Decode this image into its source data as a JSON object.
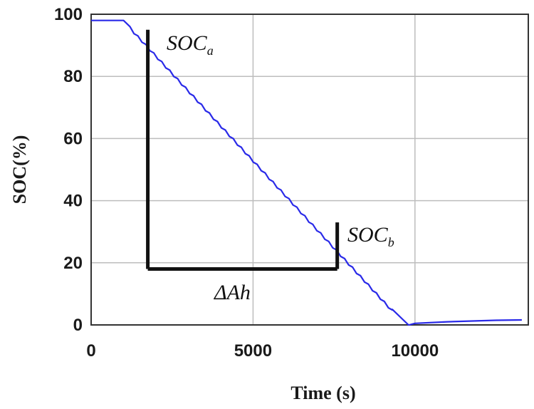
{
  "chart_data": {
    "type": "line",
    "title": "",
    "xlabel": "Time (s)",
    "ylabel": "SOC(%)",
    "xlim": [
      0,
      13500
    ],
    "ylim": [
      0,
      100
    ],
    "xticks": [
      0,
      5000,
      10000
    ],
    "yticks": [
      0,
      20,
      40,
      60,
      80,
      100
    ],
    "x_tick_labels": [
      "0",
      "5000",
      "10000"
    ],
    "y_tick_labels": [
      "0",
      "20",
      "40",
      "60",
      "80",
      "100"
    ],
    "grid": true,
    "series": [
      {
        "color": "#2a2ae8",
        "x": [
          0,
          1000,
          1200,
          9300,
          9800,
          9820,
          10000,
          11000,
          12500,
          13300
        ],
        "y": [
          98,
          98,
          96,
          5,
          0,
          0,
          0.5,
          1,
          1.5,
          1.6
        ]
      }
    ],
    "annotations": {
      "soc_a": {
        "base": "SOC",
        "sub": "a"
      },
      "soc_b": {
        "base": "SOC",
        "sub": "b"
      },
      "delta_ah": "ΔAh",
      "bracket": {
        "x_start": 1750,
        "x_end": 7600,
        "y_top_a": 95,
        "y_top_b": 33,
        "y_base": 18,
        "color": "#111111"
      }
    }
  }
}
